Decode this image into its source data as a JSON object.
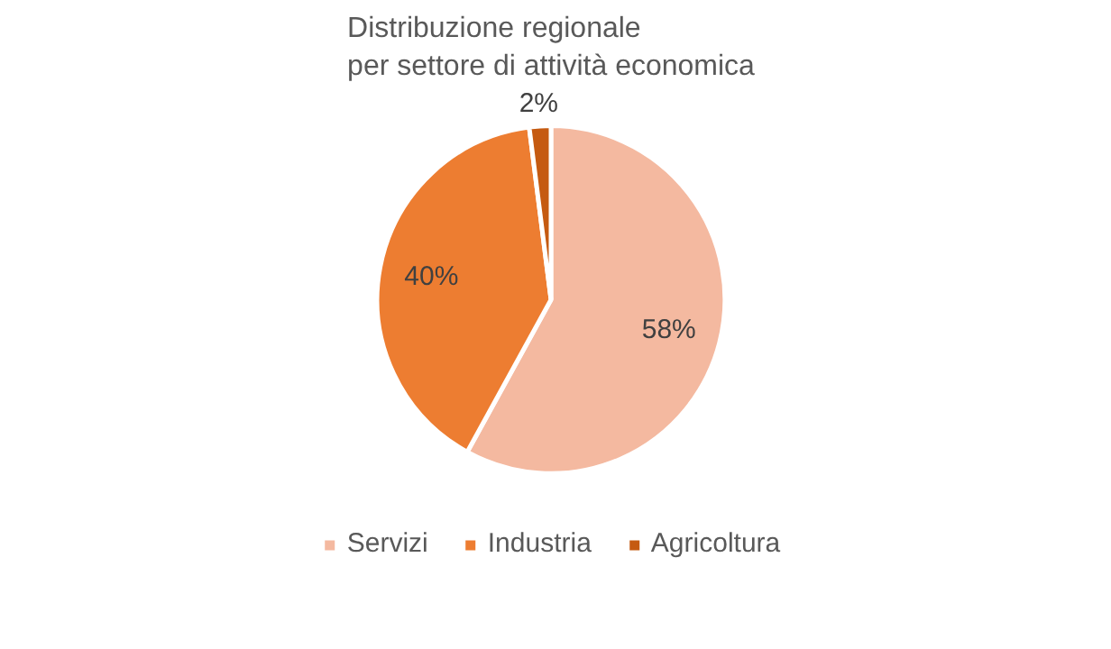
{
  "chart_data": {
    "type": "pie",
    "title": "Distribuzione regionale\nper settore di attività economica",
    "categories": [
      "Servizi",
      "Industria",
      "Agricoltura"
    ],
    "values": [
      58,
      40,
      2
    ],
    "colors": [
      "#f4b9a0",
      "#ed7d31",
      "#c55a11"
    ],
    "value_labels": [
      "58%",
      "40%",
      "2%"
    ],
    "legend": "bottom"
  }
}
